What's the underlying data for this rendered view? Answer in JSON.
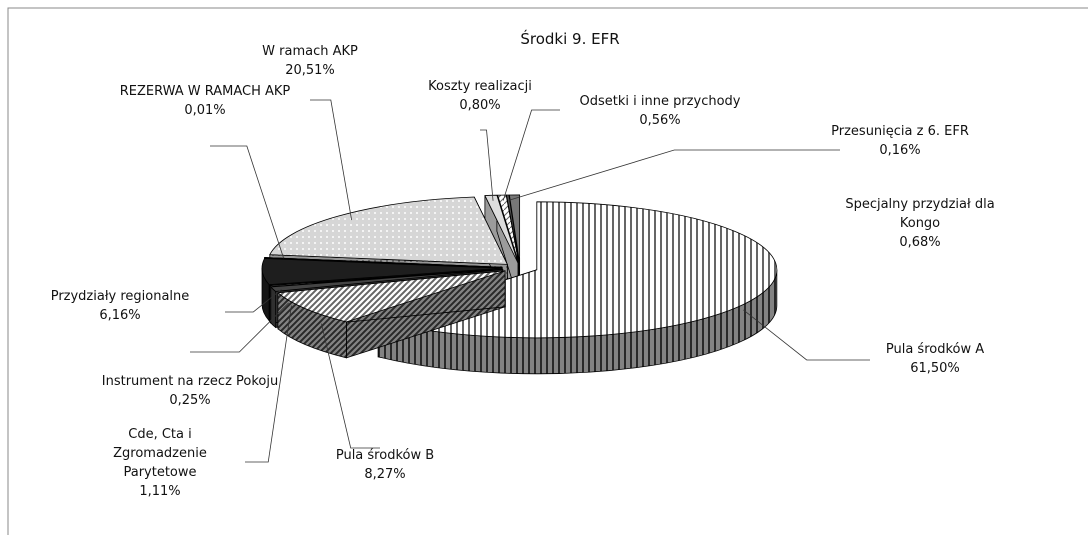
{
  "chart_data": {
    "type": "pie3d",
    "title": "Środki 9. EFR",
    "categories": [
      "Pula środków A",
      "Pula środków B",
      "Cde, Cta i Zgromadzenie Parytetowe",
      "Instrument na rzecz Pokoju",
      "Przydziały regionalne",
      "REZERWA W RAMACH AKP",
      "W ramach AKP",
      "Koszty realizacji",
      "Odsetki i inne przychody",
      "Przesunięcia z 6. EFR",
      "Specjalny przydział dla Kongo"
    ],
    "values": [
      61.5,
      8.27,
      1.11,
      0.25,
      6.16,
      0.01,
      20.51,
      0.8,
      0.56,
      0.16,
      0.68
    ],
    "value_labels": [
      "61,50%",
      "8,27%",
      "1,11%",
      "0,25%",
      "6,16%",
      "0,01%",
      "20,51%",
      "0,80%",
      "0,56%",
      "0,16%",
      "0,68%"
    ],
    "colors": [
      "#ffffff",
      "#ffffff",
      "#444444",
      "#bbbbbb",
      "#1e1e1e",
      "#000000",
      "#d6d6d6",
      "#dddddd",
      "#ffffff",
      "#555555",
      "#777777"
    ]
  }
}
